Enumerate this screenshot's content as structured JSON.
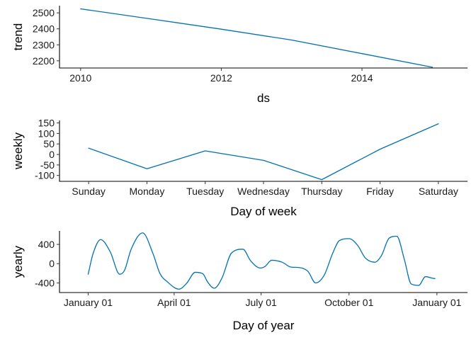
{
  "colors": {
    "series": "#0072B2"
  },
  "chart_data": [
    {
      "type": "line",
      "xlabel": "ds",
      "ylabel": "trend",
      "x_ticks": [
        2010,
        2012,
        2014
      ],
      "xlim": [
        2009.7,
        2015.5
      ],
      "y_ticks": [
        2200,
        2300,
        2400,
        2500
      ],
      "ylim": [
        2155,
        2545
      ],
      "grid": false,
      "x": [
        2010,
        2011,
        2012,
        2013,
        2014,
        2015
      ],
      "values": [
        2525,
        2462,
        2398,
        2330,
        2245,
        2160
      ]
    },
    {
      "type": "line",
      "xlabel": "Day of week",
      "ylabel": "weekly",
      "categories": [
        "Sunday",
        "Monday",
        "Tuesday",
        "Wednesday",
        "Thursday",
        "Friday",
        "Saturday"
      ],
      "y_ticks": [
        -100,
        -50,
        0,
        50,
        100,
        150
      ],
      "ylim": [
        -128,
        162
      ],
      "grid": false,
      "values": [
        30,
        -68,
        17,
        -28,
        -120,
        25,
        146
      ]
    },
    {
      "type": "line",
      "xlabel": "Day of year",
      "ylabel": "yearly",
      "x_tick_labels": [
        "January 01",
        "April 01",
        "July 01",
        "October 01",
        "January 01"
      ],
      "x_tick_days": [
        0,
        90,
        181,
        273,
        365
      ],
      "xlim": [
        -30,
        397
      ],
      "y_ticks": [
        -400,
        0,
        400
      ],
      "ylim": [
        -600,
        680
      ],
      "grid": false,
      "x": [
        0,
        5,
        13,
        23,
        33,
        38,
        45,
        57,
        68,
        75,
        83,
        95,
        103,
        112,
        120,
        125,
        132,
        140,
        150,
        162,
        170,
        180,
        185,
        192,
        203,
        212,
        220,
        230,
        238,
        247,
        256,
        263,
        273,
        282,
        290,
        300,
        307,
        315,
        323,
        331,
        338,
        346,
        353,
        360,
        363
      ],
      "values": [
        -220,
        200,
        500,
        250,
        -220,
        -140,
        300,
        640,
        200,
        -200,
        -380,
        -530,
        -410,
        -180,
        -210,
        -380,
        -510,
        -300,
        220,
        300,
        60,
        -90,
        -60,
        70,
        30,
        -70,
        -80,
        -160,
        -400,
        -240,
        220,
        480,
        520,
        380,
        120,
        30,
        170,
        530,
        570,
        80,
        -420,
        -450,
        -270,
        -300,
        -310
      ]
    }
  ]
}
